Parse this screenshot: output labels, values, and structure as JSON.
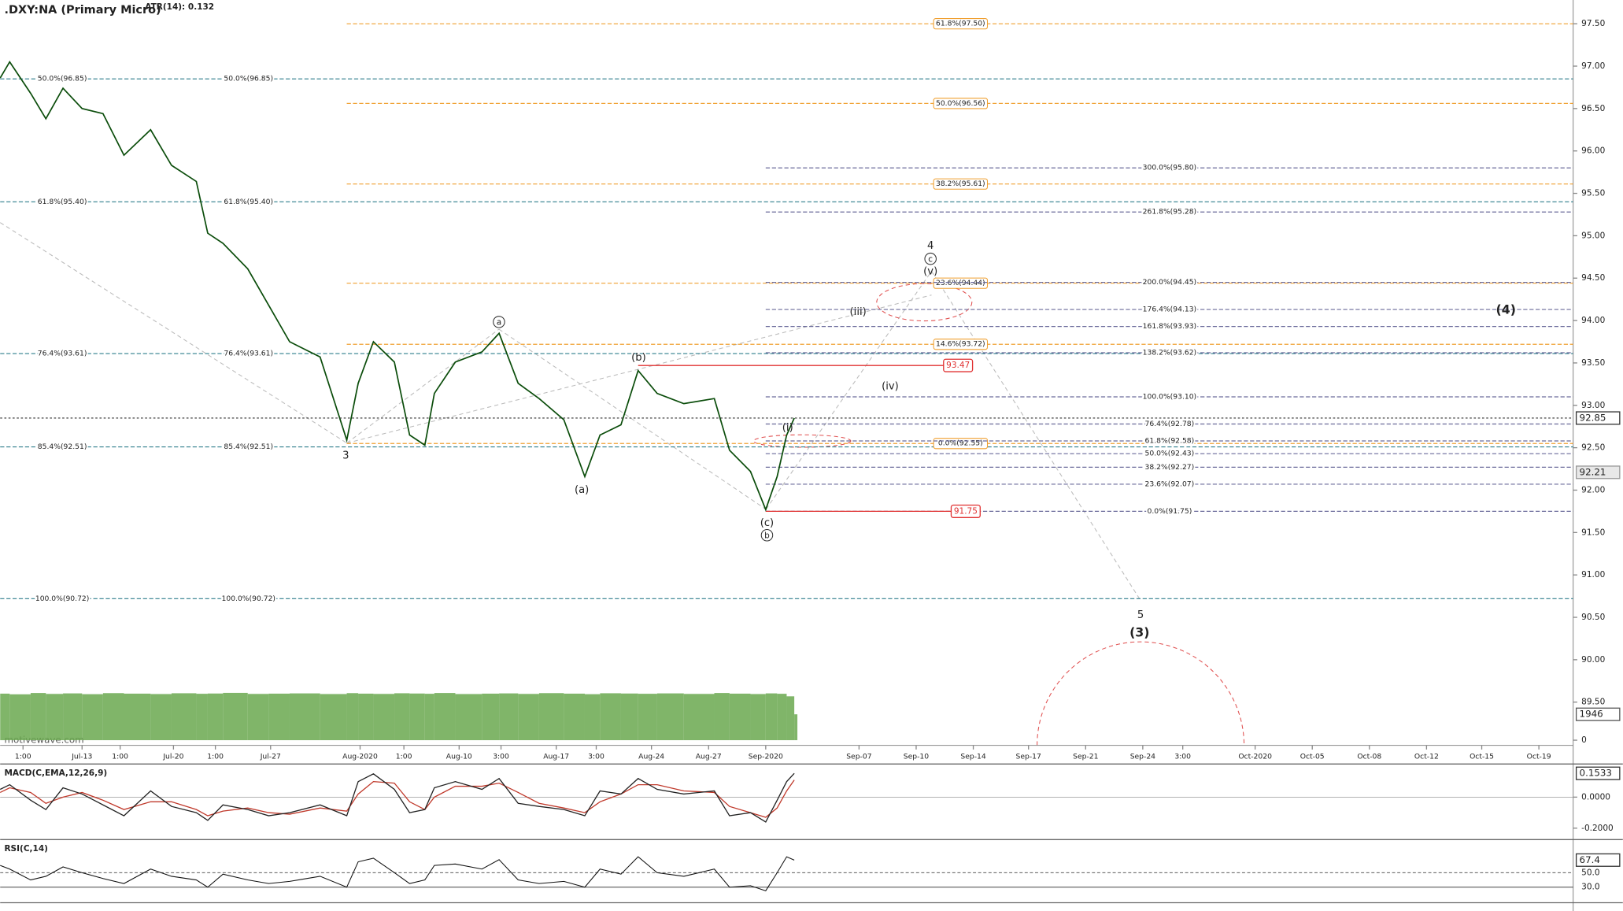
{
  "chart_data": {
    "type": "line",
    "title": ".DXY:NA (Primary Micro)",
    "subtitle": "ATR(14): 0.132",
    "watermark": "motivewave.com",
    "color": "#0b4d0b",
    "x": [
      0,
      0.5,
      1.6,
      2.4,
      3.3,
      4.3,
      5.4,
      6.5,
      7.9,
      9.0,
      10.3,
      10.9,
      11.7,
      13.0,
      14.1,
      15.2,
      16.8,
      18.2,
      18.8,
      19.6,
      20.7,
      21.5,
      22.3,
      22.8,
      23.9,
      25.3,
      26.2,
      27.2,
      28.3,
      29.6,
      30.7,
      31.5,
      32.6,
      33.5,
      34.5,
      35.9,
      37.5,
      38.3,
      39.4,
      40.2,
      40.8,
      41.3,
      41.7
    ],
    "values": [
      96.86,
      97.05,
      96.68,
      96.38,
      96.74,
      96.5,
      96.44,
      95.95,
      96.25,
      95.83,
      95.64,
      95.03,
      94.91,
      94.61,
      94.18,
      93.75,
      93.57,
      92.59,
      93.26,
      93.75,
      93.51,
      92.65,
      92.53,
      93.14,
      93.51,
      93.63,
      93.85,
      93.26,
      93.08,
      92.83,
      92.16,
      92.65,
      92.77,
      93.41,
      93.14,
      93.02,
      93.08,
      92.47,
      92.22,
      91.77,
      92.16,
      92.65,
      92.85
    ],
    "reference_price": 92.21,
    "xlim": [
      0,
      82.6
    ],
    "xticks": [
      {
        "value": 1.2,
        "label": "1:00"
      },
      {
        "value": 4.3,
        "label": "Jul-13"
      },
      {
        "value": 6.3,
        "label": "1:00"
      },
      {
        "value": 9.1,
        "label": "Jul-20"
      },
      {
        "value": 11.3,
        "label": "1:00"
      },
      {
        "value": 14.2,
        "label": "Jul-27"
      },
      {
        "value": 18.9,
        "label": "Aug-2020"
      },
      {
        "value": 21.2,
        "label": "1:00"
      },
      {
        "value": 24.1,
        "label": "Aug-10"
      },
      {
        "value": 26.3,
        "label": "3:00"
      },
      {
        "value": 29.2,
        "label": "Aug-17"
      },
      {
        "value": 31.3,
        "label": "3:00"
      },
      {
        "value": 34.2,
        "label": "Aug-24"
      },
      {
        "value": 37.2,
        "label": "Aug-27"
      },
      {
        "value": 40.2,
        "label": "Sep-2020"
      },
      {
        "value": 45.1,
        "label": "Sep-07"
      },
      {
        "value": 48.1,
        "label": "Sep-10"
      },
      {
        "value": 51.1,
        "label": "Sep-14"
      },
      {
        "value": 54.0,
        "label": "Sep-17"
      },
      {
        "value": 57.0,
        "label": "Sep-21"
      },
      {
        "value": 60.0,
        "label": "Sep-24"
      },
      {
        "value": 62.1,
        "label": "3:00"
      },
      {
        "value": 65.9,
        "label": "Oct-2020"
      },
      {
        "value": 68.9,
        "label": "Oct-05"
      },
      {
        "value": 71.9,
        "label": "Oct-08"
      },
      {
        "value": 74.9,
        "label": "Oct-12"
      },
      {
        "value": 77.8,
        "label": "Oct-15"
      },
      {
        "value": 80.8,
        "label": "Oct-19"
      }
    ],
    "ylim": [
      88.99,
      97.78
    ],
    "yticks": [
      {
        "value": 89.5,
        "label": "89.50"
      },
      {
        "value": 90,
        "label": "90.00"
      },
      {
        "value": 90.5,
        "label": "90.50"
      },
      {
        "value": 91,
        "label": "91.00"
      },
      {
        "value": 91.5,
        "label": "91.50"
      },
      {
        "value": 92,
        "label": "92.00"
      },
      {
        "value": 92.5,
        "label": "92.50"
      },
      {
        "value": 93,
        "label": "93.00"
      },
      {
        "value": 93.5,
        "label": "93.50"
      },
      {
        "value": 94,
        "label": "94.00"
      },
      {
        "value": 94.5,
        "label": "94.50"
      },
      {
        "value": 95,
        "label": "95.00"
      },
      {
        "value": 95.5,
        "label": "95.50"
      },
      {
        "value": 96,
        "label": "96.00"
      },
      {
        "value": 96.5,
        "label": "96.50"
      },
      {
        "value": 97,
        "label": "97.00"
      },
      {
        "value": 97.5,
        "label": "97.50"
      }
    ],
    "level_groups": [
      {
        "color": "#2e7d8c",
        "start": 0,
        "levels": [
          {
            "label": "50.0%(96.85)",
            "value": 96.85
          },
          {
            "label": "61.8%(95.40)",
            "value": 95.4
          },
          {
            "label": "76.4%(93.61)",
            "value": 93.61
          },
          {
            "label": "85.4%(92.51)",
            "value": 92.51
          },
          {
            "label": "100.0%(90.72)",
            "value": 90.72
          }
        ]
      },
      {
        "color": "#f0a030",
        "start": 18.2,
        "levels": [
          {
            "label": "61.8%(97.50)",
            "value": 97.5
          },
          {
            "label": "50.0%(96.56)",
            "value": 96.56
          },
          {
            "label": "38.2%(95.61)",
            "value": 95.61
          },
          {
            "label": "23.6%(94.44)",
            "value": 94.44
          },
          {
            "label": "14.6%(93.72)",
            "value": 93.72
          },
          {
            "label": "0.0%(92.55)",
            "value": 92.55
          }
        ]
      },
      {
        "color": "#6a6a9a",
        "start": 40.2,
        "levels": [
          {
            "label": "300.0%(95.80)",
            "value": 95.8
          },
          {
            "label": "261.8%(95.28)",
            "value": 95.28
          },
          {
            "label": "200.0%(94.45)",
            "value": 94.45
          },
          {
            "label": "176.4%(94.13)",
            "value": 94.13
          },
          {
            "label": "161.8%(93.93)",
            "value": 93.93
          },
          {
            "label": "138.2%(93.62)",
            "value": 93.62
          },
          {
            "label": "100.0%(93.10)",
            "value": 93.1
          },
          {
            "label": "76.4%(92.78)",
            "value": 92.78
          },
          {
            "label": "61.8%(92.58)",
            "value": 92.58
          },
          {
            "label": "50.0%(92.43)",
            "value": 92.43
          },
          {
            "label": "38.2%(92.27)",
            "value": 92.27
          },
          {
            "label": "23.6%(92.07)",
            "value": 92.07
          },
          {
            "label": "0.0%(91.75)",
            "value": 91.75
          }
        ]
      }
    ],
    "markers": {
      "color": "#e03030",
      "lines": [
        {
          "value": 93.47,
          "start": 33.5,
          "end": 50.3
        },
        {
          "value": 91.75,
          "start": 40.2,
          "end": 50.7
        }
      ]
    },
    "annotations": [
      {
        "text": "3"
      },
      {
        "text": "a",
        "circled": true
      },
      {
        "text": "(b)"
      },
      {
        "text": "(a)"
      },
      {
        "text": "(c)"
      },
      {
        "text": "b",
        "circled": true
      },
      {
        "text": "4"
      },
      {
        "text": "c",
        "circled": true
      },
      {
        "text": "(v)"
      },
      {
        "text": "(iii)"
      },
      {
        "text": "(iv)"
      },
      {
        "text": "(i)"
      },
      {
        "text": "5"
      },
      {
        "text": "(3)",
        "bold": true
      },
      {
        "text": "(4)",
        "bold": true
      }
    ],
    "volume": {
      "color": "#6aa84f",
      "ylim": [
        0,
        3892
      ],
      "yticks": [
        0
      ],
      "values": [
        3500,
        3450,
        3550,
        3480,
        3520,
        3460,
        3540,
        3500,
        3470,
        3530,
        3490,
        3510,
        3560,
        3480,
        3500,
        3520,
        3470,
        3540,
        3500,
        3480,
        3530,
        3510,
        3490,
        3550,
        3470,
        3500,
        3520,
        3480,
        3540,
        3500,
        3460,
        3530,
        3510,
        3490,
        3520,
        3480,
        3550,
        3500,
        3470,
        3520,
        3490,
        3300,
        1946
      ]
    },
    "macd": {
      "title": "MACD(C,EMA,12,26,9)",
      "ylim": [
        -0.2667,
        0.2
      ],
      "yticks": [
        {
          "value": 0,
          "label": "0.0000"
        },
        {
          "value": -0.2,
          "label": "-0.2000"
        }
      ],
      "values": [
        0.05,
        0.08,
        -0.02,
        -0.08,
        0.06,
        0.02,
        -0.05,
        -0.12,
        0.04,
        -0.06,
        -0.1,
        -0.15,
        -0.05,
        -0.08,
        -0.12,
        -0.1,
        -0.05,
        -0.12,
        0.1,
        0.15,
        0.05,
        -0.1,
        -0.08,
        0.06,
        0.1,
        0.05,
        0.12,
        -0.04,
        -0.06,
        -0.08,
        -0.12,
        0.04,
        0.02,
        0.12,
        0.05,
        0.02,
        0.04,
        -0.12,
        -0.1,
        -0.16,
        -0.02,
        0.1,
        0.1533
      ],
      "signal": [
        0.03,
        0.06,
        0.03,
        -0.04,
        0.0,
        0.03,
        -0.02,
        -0.08,
        -0.03,
        -0.03,
        -0.08,
        -0.12,
        -0.09,
        -0.07,
        -0.1,
        -0.11,
        -0.07,
        -0.09,
        0.02,
        0.1,
        0.09,
        -0.03,
        -0.08,
        0.0,
        0.07,
        0.07,
        0.09,
        0.03,
        -0.04,
        -0.07,
        -0.1,
        -0.03,
        0.02,
        0.08,
        0.08,
        0.04,
        0.03,
        -0.06,
        -0.1,
        -0.13,
        -0.07,
        0.04,
        0.11
      ]
    },
    "rsi": {
      "title": "RSI(C,14)",
      "ylim": [
        11.4,
        94.3
      ],
      "yticks": [
        {
          "value": 50,
          "label": "50.0"
        },
        {
          "value": 30,
          "label": "30.0"
        }
      ],
      "values": [
        60,
        55,
        40,
        45,
        58,
        50,
        42,
        35,
        55,
        45,
        40,
        30,
        48,
        40,
        35,
        38,
        45,
        30,
        65,
        70,
        50,
        35,
        40,
        60,
        62,
        55,
        68,
        40,
        35,
        38,
        30,
        55,
        48,
        72,
        50,
        45,
        55,
        30,
        32,
        25,
        50,
        72,
        67.4
      ]
    }
  }
}
